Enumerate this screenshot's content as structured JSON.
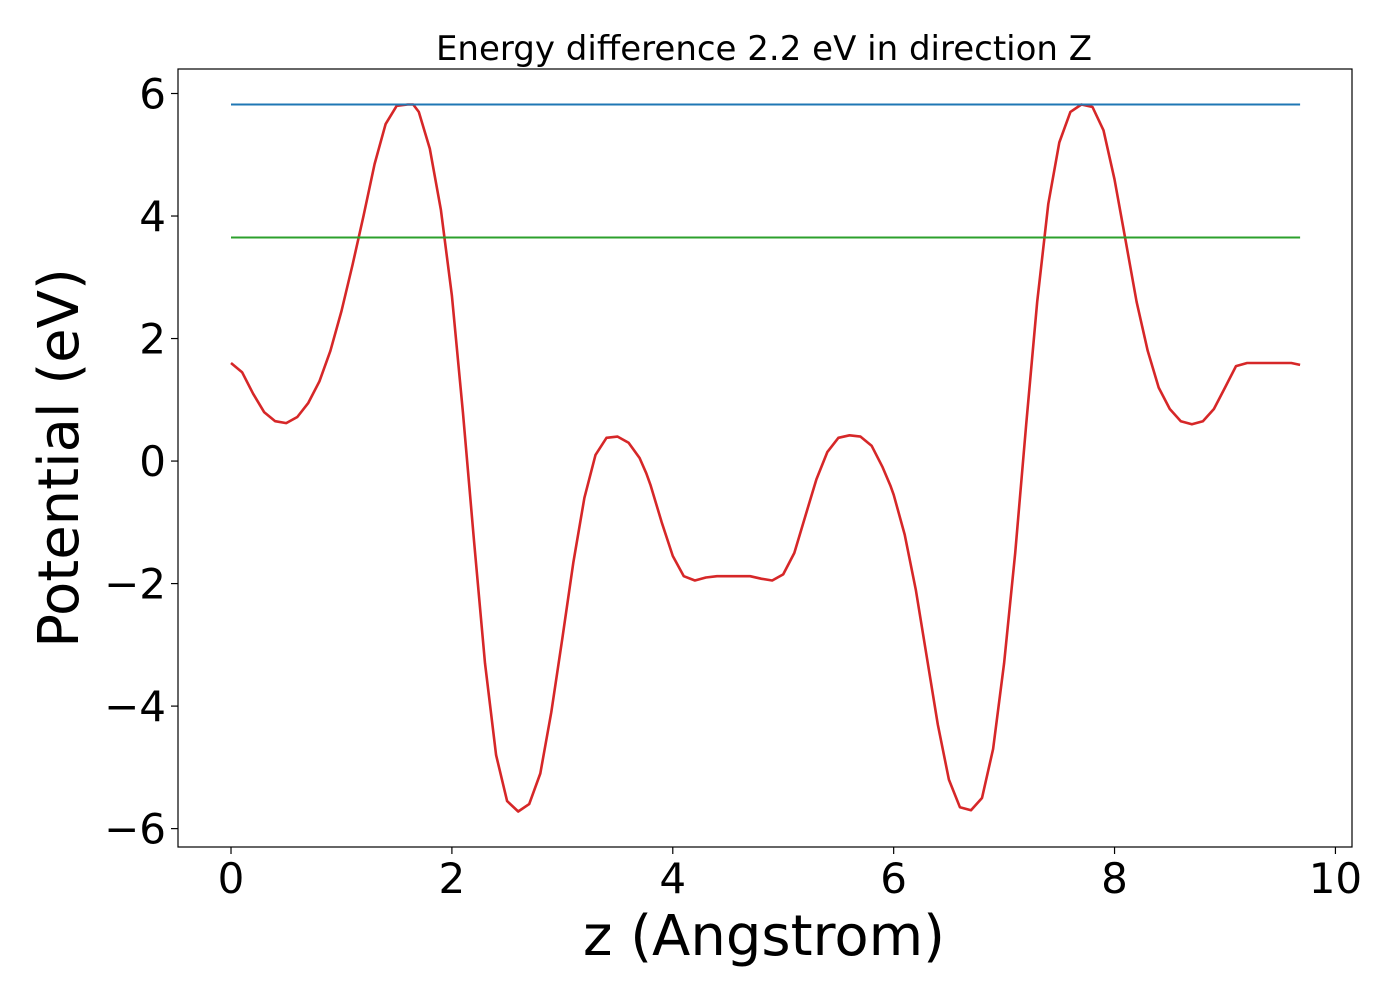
{
  "chart_data": {
    "type": "line",
    "title": "Energy difference 2.2 eV in direction Z",
    "xlabel": "z (Angstrom)",
    "ylabel": "Potential (eV)",
    "xlim": [
      -0.48,
      10.15
    ],
    "ylim": [
      -6.3,
      6.4
    ],
    "xticks": [
      0,
      2,
      4,
      6,
      8,
      10
    ],
    "xtick_labels": [
      "0",
      "2",
      "4",
      "6",
      "8",
      "10"
    ],
    "yticks": [
      -6,
      -4,
      -2,
      0,
      2,
      4,
      6
    ],
    "ytick_labels": [
      "−6",
      "−4",
      "−2",
      "0",
      "2",
      "4",
      "6"
    ],
    "grid": false,
    "series": [
      {
        "color": "#d62728",
        "x": [
          0.0,
          0.1,
          0.2,
          0.3,
          0.4,
          0.5,
          0.6,
          0.7,
          0.8,
          0.9,
          1.0,
          1.1,
          1.2,
          1.3,
          1.4,
          1.5,
          1.6,
          1.65,
          1.7,
          1.8,
          1.9,
          2.0,
          2.1,
          2.2,
          2.3,
          2.4,
          2.5,
          2.6,
          2.7,
          2.8,
          2.9,
          3.0,
          3.1,
          3.2,
          3.3,
          3.4,
          3.5,
          3.6,
          3.7,
          3.76,
          3.8,
          3.9,
          4.0,
          4.1,
          4.2,
          4.3,
          4.4,
          4.5,
          4.6,
          4.7,
          4.8,
          4.9,
          5.0,
          5.1,
          5.2,
          5.3,
          5.4,
          5.5,
          5.6,
          5.7,
          5.8,
          5.9,
          5.97,
          6.0,
          6.1,
          6.2,
          6.3,
          6.4,
          6.5,
          6.6,
          6.7,
          6.8,
          6.9,
          7.0,
          7.1,
          7.2,
          7.3,
          7.4,
          7.5,
          7.6,
          7.7,
          7.8,
          7.9,
          8.0,
          8.1,
          8.2,
          8.3,
          8.4,
          8.5,
          8.6,
          8.7,
          8.8,
          8.9,
          9.0,
          9.1,
          9.2,
          9.3,
          9.4,
          9.5,
          9.6,
          9.68
        ],
        "y": [
          1.6,
          1.45,
          1.1,
          0.8,
          0.65,
          0.62,
          0.72,
          0.95,
          1.3,
          1.8,
          2.45,
          3.2,
          4.0,
          4.85,
          5.5,
          5.8,
          5.82,
          5.82,
          5.7,
          5.1,
          4.1,
          2.7,
          0.8,
          -1.3,
          -3.3,
          -4.8,
          -5.55,
          -5.72,
          -5.6,
          -5.1,
          -4.1,
          -2.9,
          -1.65,
          -0.6,
          0.1,
          0.38,
          0.4,
          0.3,
          0.05,
          -0.2,
          -0.4,
          -1.0,
          -1.55,
          -1.88,
          -1.95,
          -1.9,
          -1.88,
          -1.88,
          -1.88,
          -1.88,
          -1.92,
          -1.95,
          -1.85,
          -1.5,
          -0.9,
          -0.3,
          0.15,
          0.38,
          0.42,
          0.4,
          0.25,
          -0.1,
          -0.4,
          -0.55,
          -1.2,
          -2.1,
          -3.2,
          -4.3,
          -5.2,
          -5.65,
          -5.7,
          -5.5,
          -4.7,
          -3.3,
          -1.5,
          0.6,
          2.6,
          4.2,
          5.2,
          5.7,
          5.82,
          5.78,
          5.4,
          4.6,
          3.6,
          2.6,
          1.8,
          1.2,
          0.85,
          0.65,
          0.6,
          0.65,
          0.85,
          1.2,
          1.55,
          1.6,
          1.6,
          1.6,
          1.6,
          1.6,
          1.57
        ]
      },
      {
        "color": "#1f77b4",
        "x": [
          0.0,
          9.68
        ],
        "y": [
          5.82,
          5.82
        ]
      },
      {
        "color": "#2ca02c",
        "x": [
          0.0,
          9.68
        ],
        "y": [
          3.65,
          3.65
        ]
      }
    ]
  }
}
